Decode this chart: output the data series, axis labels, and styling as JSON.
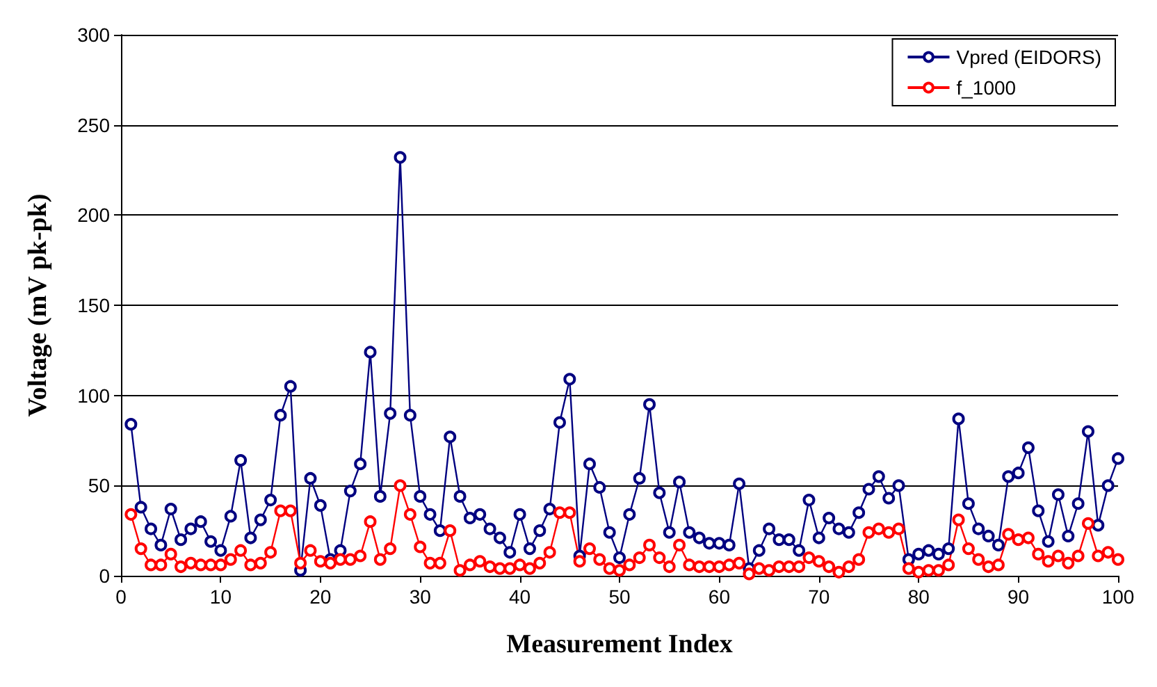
{
  "chart_data": {
    "type": "line",
    "xlabel": "Measurement Index",
    "ylabel": "Voltage (mV pk-pk)",
    "x": [
      1,
      2,
      3,
      4,
      5,
      6,
      7,
      8,
      9,
      10,
      11,
      12,
      13,
      14,
      15,
      16,
      17,
      18,
      19,
      20,
      21,
      22,
      23,
      24,
      25,
      26,
      27,
      28,
      29,
      30,
      31,
      32,
      33,
      34,
      35,
      36,
      37,
      38,
      39,
      40,
      41,
      42,
      43,
      44,
      45,
      46,
      47,
      48,
      49,
      50,
      51,
      52,
      53,
      54,
      55,
      56,
      57,
      58,
      59,
      60,
      61,
      62,
      63,
      64,
      65,
      66,
      67,
      68,
      69,
      70,
      71,
      72,
      73,
      74,
      75,
      76,
      77,
      78,
      79,
      80,
      81,
      82,
      83,
      84,
      85,
      86,
      87,
      88,
      89,
      90,
      91,
      92,
      93,
      94,
      95,
      96,
      97,
      98,
      99,
      100
    ],
    "series": [
      {
        "name": "Vpred (EIDORS)",
        "color": "#000080",
        "values": [
          84,
          38,
          26,
          17,
          37,
          20,
          26,
          30,
          19,
          14,
          33,
          64,
          21,
          31,
          42,
          89,
          105,
          3,
          54,
          39,
          9,
          14,
          47,
          62,
          124,
          44,
          90,
          232,
          89,
          44,
          34,
          25,
          77,
          44,
          32,
          34,
          26,
          21,
          13,
          34,
          15,
          25,
          37,
          85,
          109,
          11,
          62,
          49,
          24,
          10,
          34,
          54,
          95,
          46,
          24,
          52,
          24,
          21,
          18,
          18,
          17,
          51,
          4,
          14,
          26,
          20,
          20,
          14,
          42,
          21,
          32,
          26,
          24,
          35,
          48,
          55,
          43,
          50,
          9,
          12,
          14,
          12,
          15,
          87,
          40,
          26,
          22,
          17,
          55,
          57,
          71,
          36,
          19,
          45,
          22,
          40,
          80,
          28,
          50,
          65
        ]
      },
      {
        "name": "f_1000",
        "color": "#ff0000",
        "values": [
          34,
          15,
          6,
          6,
          12,
          5,
          7,
          6,
          6,
          6,
          9,
          14,
          6,
          7,
          13,
          36,
          36,
          7,
          14,
          8,
          7,
          9,
          9,
          11,
          30,
          9,
          15,
          50,
          34,
          16,
          7,
          7,
          25,
          3,
          6,
          8,
          5,
          4,
          4,
          6,
          4,
          7,
          13,
          35,
          35,
          8,
          15,
          9,
          4,
          3,
          6,
          10,
          17,
          10,
          5,
          17,
          6,
          5,
          5,
          5,
          6,
          7,
          1,
          4,
          3,
          5,
          5,
          5,
          10,
          8,
          5,
          2,
          5,
          9,
          24,
          26,
          24,
          26,
          4,
          2,
          3,
          3,
          6,
          31,
          15,
          9,
          5,
          6,
          23,
          20,
          21,
          12,
          8,
          11,
          7,
          11,
          29,
          11,
          13,
          9
        ]
      }
    ],
    "xlim": [
      0,
      100
    ],
    "xticks": [
      0,
      10,
      20,
      30,
      40,
      50,
      60,
      70,
      80,
      90,
      100
    ],
    "ylim": [
      0,
      300
    ],
    "yticks": [
      0,
      50,
      100,
      150,
      200,
      250,
      300
    ],
    "grid": "y",
    "legend": "top right",
    "marker": "circle",
    "line_style": "solid"
  }
}
